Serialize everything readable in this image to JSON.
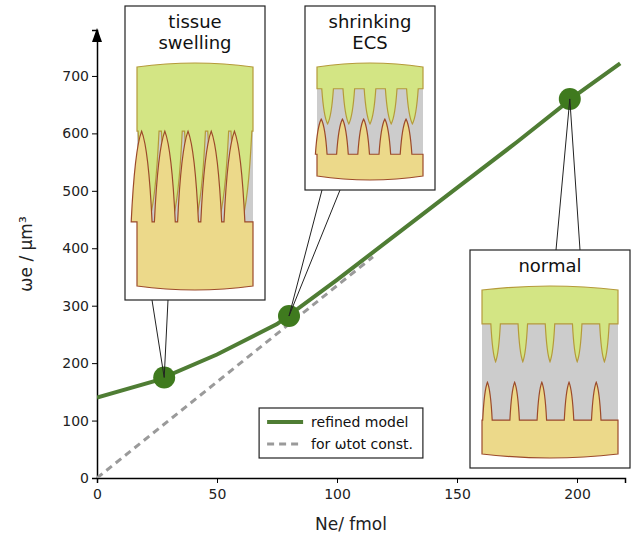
{
  "chart_data": {
    "type": "line",
    "x_label": "Ne/ fmol",
    "y_label": "ωe / µm³",
    "xlim": [
      0,
      220
    ],
    "xticks": [
      0,
      50,
      100,
      150,
      200
    ],
    "ylim": [
      0,
      780
    ],
    "yticks": [
      0,
      100,
      200,
      300,
      400,
      500,
      600,
      700
    ],
    "grid": false,
    "legend": "bottom",
    "series": [
      {
        "name": "refined model",
        "color": "#4f7d34",
        "line_style": "solid",
        "x": [
          0,
          25,
          50,
          75,
          100,
          125,
          150,
          175,
          200,
          218
        ],
        "values": [
          140,
          170,
          215,
          268,
          345,
          425,
          505,
          585,
          668,
          722
        ]
      },
      {
        "name": "for ωtot const.",
        "color": "#9a9a9a",
        "line_style": "dashed",
        "x": [
          0,
          115
        ],
        "values": [
          0,
          385
        ]
      }
    ],
    "annotations": [
      {
        "text": "tissue swelling",
        "x": 28,
        "y": 175,
        "color": "#3f7a1e"
      },
      {
        "text": "shrinking ECS",
        "x": 80,
        "y": 282,
        "color": "#3f7a1e"
      },
      {
        "text": "normal",
        "x": 197,
        "y": 660,
        "color": "#3f7a1e"
      }
    ]
  }
}
